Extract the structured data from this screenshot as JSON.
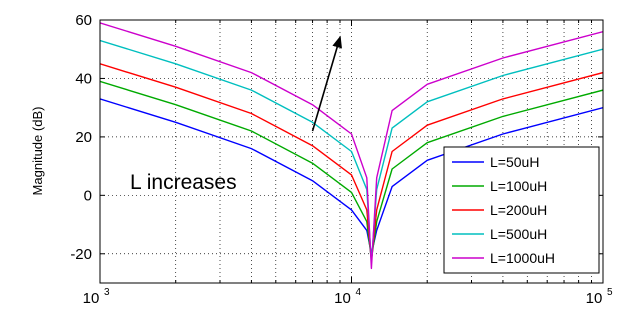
{
  "chart_data": {
    "type": "line",
    "x_scale": "log",
    "xlim": [
      1000,
      100000
    ],
    "ylim": [
      -30,
      60
    ],
    "ylabel": "Magnitude (dB)",
    "xlabel": "",
    "grid": true,
    "legend_position": "bottom-right",
    "x_ticks": [
      {
        "base": "10",
        "exp": "3"
      },
      {
        "base": "10",
        "exp": "4"
      },
      {
        "base": "10",
        "exp": "5"
      }
    ],
    "y_ticks": [
      "-20",
      "0",
      "20",
      "40",
      "60"
    ],
    "resonance_x": 12000,
    "annotation": {
      "text": "L increases",
      "arrow_from": [
        7000,
        22
      ],
      "arrow_to": [
        9000,
        54
      ]
    },
    "series": [
      {
        "name": "L=50uH",
        "color": "#0000ff",
        "x": [
          1000,
          2000,
          4000,
          7000,
          10000,
          11500,
          12000,
          12600,
          14500,
          20000,
          40000,
          100000
        ],
        "y": [
          33,
          25,
          16,
          5,
          -5,
          -12,
          -20,
          -12,
          3,
          12,
          21,
          30
        ]
      },
      {
        "name": "L=100uH",
        "color": "#00aa00",
        "x": [
          1000,
          2000,
          4000,
          7000,
          10000,
          11500,
          12000,
          12600,
          14500,
          20000,
          40000,
          100000
        ],
        "y": [
          39,
          31,
          22,
          11,
          1,
          -9,
          -22,
          -9,
          9,
          18,
          27,
          36
        ]
      },
      {
        "name": "L=200uH",
        "color": "#ff0000",
        "x": [
          1000,
          2000,
          4000,
          7000,
          10000,
          11500,
          12000,
          12600,
          14500,
          20000,
          40000,
          100000
        ],
        "y": [
          45,
          37,
          28,
          17,
          7,
          -5,
          -22,
          -5,
          15,
          24,
          33,
          42
        ]
      },
      {
        "name": "L=500uH",
        "color": "#00bfbf",
        "x": [
          1000,
          2000,
          4000,
          7000,
          10000,
          11500,
          12000,
          12600,
          14500,
          20000,
          40000,
          100000
        ],
        "y": [
          53,
          45,
          36,
          25,
          15,
          2,
          -23,
          2,
          23,
          32,
          41,
          50
        ]
      },
      {
        "name": "L=1000uH",
        "color": "#cc00cc",
        "x": [
          1000,
          2000,
          4000,
          7000,
          10000,
          11500,
          12000,
          12600,
          14500,
          20000,
          40000,
          100000
        ],
        "y": [
          59,
          51,
          42,
          31,
          21,
          6,
          -25,
          6,
          29,
          38,
          47,
          56
        ]
      }
    ]
  }
}
